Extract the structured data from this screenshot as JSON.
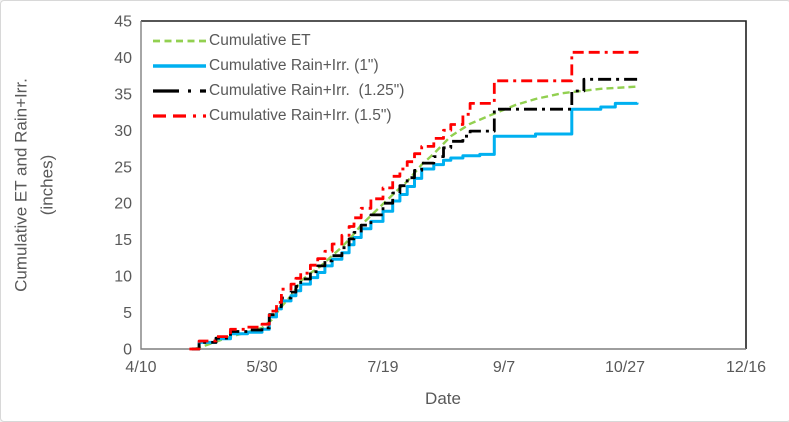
{
  "chart": {
    "background": "#ffffff",
    "frame_border_color": "#d8d8d8",
    "plot_border_color": "#1f1f1f",
    "axis_line_color": "#7f7f7f",
    "text_color": "#595959"
  },
  "chart_data": {
    "type": "line",
    "title": "",
    "xlabel": "Date",
    "ylabel": "Cumulative ET and Rain+Irr. (inches)",
    "ylabel_line1": "Cumulative ET and Rain+Irr.",
    "ylabel_line2": "(inches)",
    "x_unit": "days after 4/10",
    "x_tick_labels": [
      "4/10",
      "5/30",
      "7/19",
      "9/7",
      "10/27",
      "12/16"
    ],
    "x_tick_days": [
      0,
      50,
      100,
      150,
      200,
      250
    ],
    "xlim_days": [
      0,
      250
    ],
    "y_ticks": [
      0,
      5,
      10,
      15,
      20,
      25,
      30,
      35,
      40,
      45
    ],
    "ylim": [
      0,
      45
    ],
    "grid": false,
    "legend_position": "upper-left-inside",
    "series": [
      {
        "name": "Cumulative ET",
        "color": "#92d050",
        "style": "dashed",
        "width": 2.4,
        "interpolation": "linear",
        "points": [
          [
            22,
            0
          ],
          [
            26,
            0.4
          ],
          [
            31,
            1.0
          ],
          [
            37,
            1.7
          ],
          [
            44,
            2.3
          ],
          [
            50,
            2.9
          ],
          [
            54,
            4.0
          ],
          [
            58,
            5.8
          ],
          [
            62,
            7.3
          ],
          [
            66,
            9.3
          ],
          [
            70,
            10.4
          ],
          [
            74,
            11.3
          ],
          [
            79,
            12.8
          ],
          [
            83,
            14.0
          ],
          [
            87,
            15.4
          ],
          [
            91,
            17.0
          ],
          [
            96,
            18.6
          ],
          [
            100,
            19.9
          ],
          [
            105,
            21.5
          ],
          [
            110,
            23.0
          ],
          [
            116,
            25.3
          ],
          [
            121,
            26.8
          ],
          [
            128,
            29.2
          ],
          [
            136,
            30.9
          ],
          [
            146,
            32.3
          ],
          [
            155,
            33.5
          ],
          [
            163,
            34.3
          ],
          [
            174,
            35.1
          ],
          [
            190,
            35.7
          ],
          [
            205,
            36.0
          ]
        ]
      },
      {
        "name": "Cumulative Rain+Irr. (1\")",
        "color": "#00b0f0",
        "style": "solid",
        "width": 3,
        "interpolation": "step",
        "points": [
          [
            21,
            0
          ],
          [
            24,
            0.9
          ],
          [
            31,
            1.4
          ],
          [
            37,
            2.1
          ],
          [
            44,
            2.3
          ],
          [
            50,
            2.7
          ],
          [
            53,
            4.4
          ],
          [
            56,
            5.5
          ],
          [
            58,
            6.6
          ],
          [
            62,
            7.3
          ],
          [
            64,
            8.0
          ],
          [
            66,
            8.9
          ],
          [
            70,
            9.8
          ],
          [
            73,
            10.5
          ],
          [
            76,
            11.4
          ],
          [
            79,
            12.3
          ],
          [
            83,
            13.2
          ],
          [
            86,
            14.3
          ],
          [
            88,
            15.3
          ],
          [
            91,
            16.5
          ],
          [
            95,
            17.5
          ],
          [
            100,
            18.9
          ],
          [
            104,
            20.3
          ],
          [
            107,
            21.2
          ],
          [
            110,
            22.3
          ],
          [
            113,
            23.4
          ],
          [
            116,
            24.7
          ],
          [
            121,
            25.3
          ],
          [
            125,
            25.9
          ],
          [
            128,
            26.2
          ],
          [
            133,
            26.5
          ],
          [
            140,
            26.7
          ],
          [
            146,
            29.2
          ],
          [
            163,
            29.5
          ],
          [
            178,
            32.9
          ],
          [
            190,
            33.2
          ],
          [
            196,
            33.7
          ],
          [
            205,
            33.8
          ]
        ]
      },
      {
        "name": "Cumulative Rain+Irr.  (1.25\")",
        "color": "#000000",
        "style": "dashdot",
        "width": 2.8,
        "interpolation": "step",
        "points": [
          [
            21,
            0
          ],
          [
            24,
            0.9
          ],
          [
            31,
            1.5
          ],
          [
            37,
            2.4
          ],
          [
            44,
            2.6
          ],
          [
            50,
            2.9
          ],
          [
            53,
            4.7
          ],
          [
            56,
            5.8
          ],
          [
            58,
            7.0
          ],
          [
            62,
            7.8
          ],
          [
            64,
            8.6
          ],
          [
            66,
            9.6
          ],
          [
            70,
            10.6
          ],
          [
            73,
            11.4
          ],
          [
            76,
            12.1
          ],
          [
            79,
            12.8
          ],
          [
            83,
            13.9
          ],
          [
            86,
            15.1
          ],
          [
            88,
            16.0
          ],
          [
            91,
            17.0
          ],
          [
            95,
            18.4
          ],
          [
            100,
            20.0
          ],
          [
            104,
            21.4
          ],
          [
            107,
            22.4
          ],
          [
            110,
            23.5
          ],
          [
            113,
            24.5
          ],
          [
            116,
            25.5
          ],
          [
            121,
            26.4
          ],
          [
            125,
            27.6
          ],
          [
            128,
            28.5
          ],
          [
            133,
            29.2
          ],
          [
            136,
            29.9
          ],
          [
            146,
            32.9
          ],
          [
            178,
            35.4
          ],
          [
            183,
            37.0
          ],
          [
            205,
            37.3
          ]
        ]
      },
      {
        "name": "Cumulative Rain+Irr. (1.5\")",
        "color": "#ff0000",
        "style": "longdashdot",
        "width": 2.8,
        "interpolation": "step",
        "points": [
          [
            20,
            0
          ],
          [
            24,
            1.1
          ],
          [
            31,
            1.7
          ],
          [
            37,
            2.7
          ],
          [
            44,
            3.0
          ],
          [
            50,
            3.4
          ],
          [
            53,
            5.2
          ],
          [
            56,
            6.4
          ],
          [
            58,
            8.2
          ],
          [
            62,
            8.9
          ],
          [
            64,
            9.7
          ],
          [
            66,
            10.4
          ],
          [
            70,
            11.5
          ],
          [
            73,
            12.4
          ],
          [
            76,
            13.4
          ],
          [
            79,
            14.4
          ],
          [
            83,
            15.6
          ],
          [
            86,
            16.8
          ],
          [
            88,
            18.0
          ],
          [
            91,
            19.3
          ],
          [
            95,
            20.6
          ],
          [
            100,
            22.1
          ],
          [
            104,
            23.7
          ],
          [
            107,
            24.7
          ],
          [
            110,
            25.7
          ],
          [
            113,
            26.8
          ],
          [
            116,
            27.8
          ],
          [
            121,
            28.9
          ],
          [
            125,
            30.0
          ],
          [
            128,
            30.8
          ],
          [
            133,
            32.2
          ],
          [
            136,
            33.7
          ],
          [
            146,
            36.8
          ],
          [
            178,
            40.7
          ],
          [
            205,
            40.9
          ]
        ]
      }
    ]
  }
}
